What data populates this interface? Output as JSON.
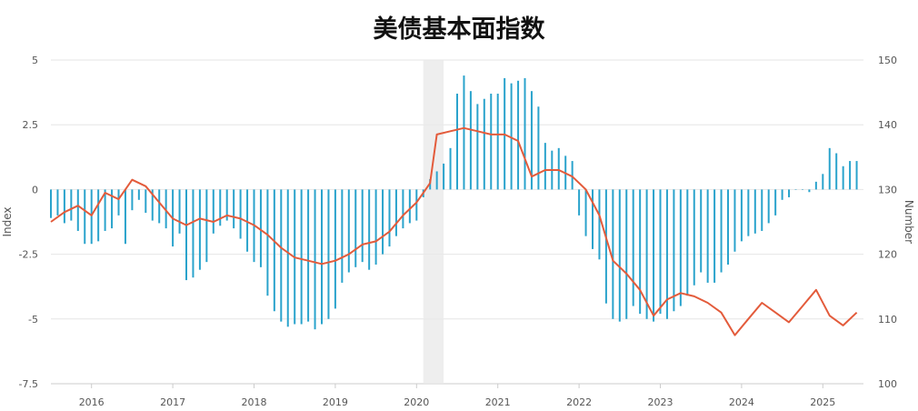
{
  "chart_data": {
    "type": "bar+line",
    "title": "美债基本面指数",
    "xlabel": "",
    "ylabel_left": "Index",
    "ylabel_right": "Number",
    "grid": true,
    "legend": "none",
    "x_tick_labels": [
      "2016",
      "2017",
      "2018",
      "2019",
      "2020",
      "2021",
      "2022",
      "2023",
      "2024",
      "2025"
    ],
    "x_range": [
      "2015-07",
      "2025-07"
    ],
    "y_left": {
      "range": [
        -7.5,
        5
      ],
      "tick_values": [
        5,
        2.5,
        0,
        -2.5,
        -5,
        -7.5
      ],
      "tick_labels": [
        "5",
        "2.5",
        "0",
        "-2.5",
        "-5",
        "-7.5"
      ]
    },
    "y_right": {
      "range": [
        100,
        150
      ],
      "tick_values": [
        150,
        140,
        130,
        120,
        110,
        100
      ],
      "tick_labels": [
        "150",
        "140",
        "130",
        "120",
        "110",
        "100"
      ]
    },
    "shaded_period": [
      "2020-02",
      "2020-05"
    ],
    "colors": {
      "bars": "#2aa3cc",
      "line": "#e35b3b",
      "shade": "#e8e8e8"
    },
    "series": [
      {
        "type": "bar",
        "axis": "left",
        "x": [
          "2015-07",
          "2015-08",
          "2015-09",
          "2015-10",
          "2015-11",
          "2015-12",
          "2016-01",
          "2016-02",
          "2016-03",
          "2016-04",
          "2016-05",
          "2016-06",
          "2016-07",
          "2016-08",
          "2016-09",
          "2016-10",
          "2016-11",
          "2016-12",
          "2017-01",
          "2017-02",
          "2017-03",
          "2017-04",
          "2017-05",
          "2017-06",
          "2017-07",
          "2017-08",
          "2017-09",
          "2017-10",
          "2017-11",
          "2017-12",
          "2018-01",
          "2018-02",
          "2018-03",
          "2018-04",
          "2018-05",
          "2018-06",
          "2018-07",
          "2018-08",
          "2018-09",
          "2018-10",
          "2018-11",
          "2018-12",
          "2019-01",
          "2019-02",
          "2019-03",
          "2019-04",
          "2019-05",
          "2019-06",
          "2019-07",
          "2019-08",
          "2019-09",
          "2019-10",
          "2019-11",
          "2019-12",
          "2020-01",
          "2020-02",
          "2020-03",
          "2020-04",
          "2020-05",
          "2020-06",
          "2020-07",
          "2020-08",
          "2020-09",
          "2020-10",
          "2020-11",
          "2020-12",
          "2021-01",
          "2021-02",
          "2021-03",
          "2021-04",
          "2021-05",
          "2021-06",
          "2021-07",
          "2021-08",
          "2021-09",
          "2021-10",
          "2021-11",
          "2021-12",
          "2022-01",
          "2022-02",
          "2022-03",
          "2022-04",
          "2022-05",
          "2022-06",
          "2022-07",
          "2022-08",
          "2022-09",
          "2022-10",
          "2022-11",
          "2022-12",
          "2023-01",
          "2023-02",
          "2023-03",
          "2023-04",
          "2023-05",
          "2023-06",
          "2023-07",
          "2023-08",
          "2023-09",
          "2023-10",
          "2023-11",
          "2023-12",
          "2024-01",
          "2024-02",
          "2024-03",
          "2024-04",
          "2024-05",
          "2024-06",
          "2024-07",
          "2024-08",
          "2024-09",
          "2024-10",
          "2024-11",
          "2024-12",
          "2025-01",
          "2025-02",
          "2025-03",
          "2025-04",
          "2025-05",
          "2025-06"
        ],
        "values": [
          -1.1,
          -1.0,
          -1.3,
          -1.2,
          -1.6,
          -2.1,
          -2.1,
          -2.0,
          -1.6,
          -1.5,
          -1.0,
          -2.1,
          -0.8,
          -0.4,
          -0.9,
          -1.2,
          -1.3,
          -1.5,
          -2.2,
          -1.7,
          -3.5,
          -3.4,
          -3.1,
          -2.8,
          -1.7,
          -1.4,
          -1.2,
          -1.5,
          -1.9,
          -2.4,
          -2.8,
          -3.0,
          -4.1,
          -4.7,
          -5.1,
          -5.3,
          -5.2,
          -5.2,
          -5.1,
          -5.4,
          -5.2,
          -5.0,
          -4.6,
          -3.6,
          -3.2,
          -3.0,
          -2.8,
          -3.1,
          -2.9,
          -2.5,
          -2.2,
          -1.8,
          -1.5,
          -1.3,
          -1.2,
          -0.3,
          0.4,
          0.7,
          1.0,
          1.6,
          3.7,
          4.4,
          3.8,
          3.3,
          3.5,
          3.7,
          3.7,
          4.3,
          4.1,
          4.2,
          4.3,
          3.8,
          3.2,
          1.8,
          1.5,
          1.6,
          1.3,
          1.1,
          -1.0,
          -1.8,
          -2.3,
          -2.7,
          -4.4,
          -5.0,
          -5.1,
          -5.0,
          -4.5,
          -4.8,
          -5.0,
          -5.1,
          -4.8,
          -5.0,
          -4.7,
          -4.5,
          -4.1,
          -3.7,
          -3.2,
          -3.6,
          -3.6,
          -3.2,
          -2.9,
          -2.4,
          -2.0,
          -1.8,
          -1.7,
          -1.6,
          -1.3,
          -1.0,
          -0.4,
          -0.3,
          0.0,
          0.0,
          -0.1,
          0.3,
          0.6,
          1.6,
          1.4,
          0.9,
          1.1,
          1.1
        ]
      },
      {
        "type": "line",
        "axis": "right",
        "x": [
          "2015-07",
          "2015-09",
          "2015-11",
          "2016-01",
          "2016-03",
          "2016-05",
          "2016-07",
          "2016-09",
          "2016-11",
          "2017-01",
          "2017-03",
          "2017-05",
          "2017-07",
          "2017-09",
          "2017-11",
          "2018-01",
          "2018-03",
          "2018-05",
          "2018-07",
          "2018-09",
          "2018-11",
          "2019-01",
          "2019-03",
          "2019-05",
          "2019-07",
          "2019-09",
          "2019-11",
          "2020-01",
          "2020-02",
          "2020-03",
          "2020-04",
          "2020-06",
          "2020-08",
          "2020-10",
          "2020-12",
          "2021-02",
          "2021-04",
          "2021-06",
          "2021-08",
          "2021-10",
          "2021-12",
          "2022-02",
          "2022-04",
          "2022-06",
          "2022-08",
          "2022-10",
          "2022-12",
          "2023-02",
          "2023-04",
          "2023-06",
          "2023-08",
          "2023-10",
          "2023-12",
          "2024-02",
          "2024-04",
          "2024-06",
          "2024-08",
          "2024-10",
          "2024-12",
          "2025-02",
          "2025-04",
          "2025-06"
        ],
        "values": [
          125.0,
          126.5,
          127.5,
          126.0,
          129.5,
          128.5,
          131.5,
          130.5,
          128.0,
          125.5,
          124.5,
          125.5,
          125.0,
          126.0,
          125.5,
          124.5,
          123.0,
          121.0,
          119.5,
          119.0,
          118.5,
          119.0,
          120.0,
          121.5,
          122.0,
          123.5,
          126.0,
          128.0,
          129.5,
          131.0,
          138.5,
          139.0,
          139.5,
          139.0,
          138.5,
          138.5,
          137.5,
          132.0,
          133.0,
          133.0,
          132.0,
          130.0,
          126.0,
          119.0,
          117.0,
          114.5,
          110.5,
          113.0,
          114.0,
          113.5,
          112.5,
          111.0,
          107.5,
          110.0,
          112.5,
          111.0,
          109.5,
          112.0,
          114.5,
          110.5,
          109.0,
          111.0
        ]
      }
    ]
  }
}
